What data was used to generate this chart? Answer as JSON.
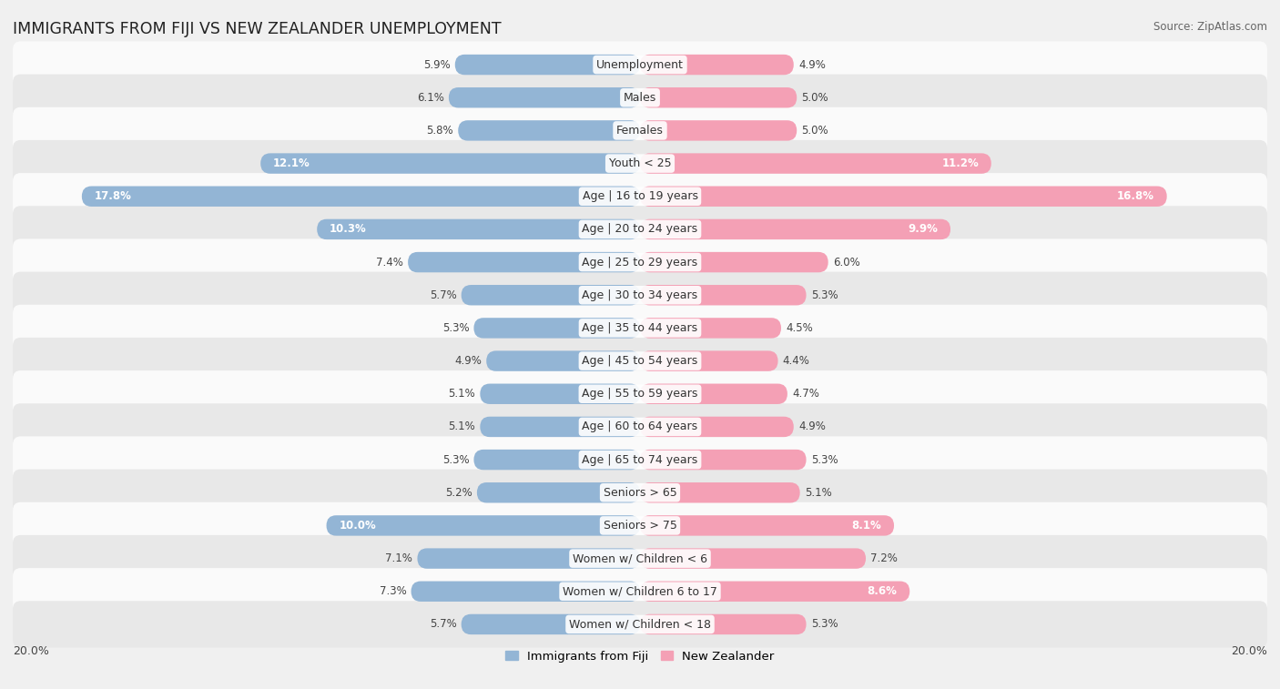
{
  "title": "IMMIGRANTS FROM FIJI VS NEW ZEALANDER UNEMPLOYMENT",
  "source": "Source: ZipAtlas.com",
  "categories": [
    "Unemployment",
    "Males",
    "Females",
    "Youth < 25",
    "Age | 16 to 19 years",
    "Age | 20 to 24 years",
    "Age | 25 to 29 years",
    "Age | 30 to 34 years",
    "Age | 35 to 44 years",
    "Age | 45 to 54 years",
    "Age | 55 to 59 years",
    "Age | 60 to 64 years",
    "Age | 65 to 74 years",
    "Seniors > 65",
    "Seniors > 75",
    "Women w/ Children < 6",
    "Women w/ Children 6 to 17",
    "Women w/ Children < 18"
  ],
  "fiji_values": [
    5.9,
    6.1,
    5.8,
    12.1,
    17.8,
    10.3,
    7.4,
    5.7,
    5.3,
    4.9,
    5.1,
    5.1,
    5.3,
    5.2,
    10.0,
    7.1,
    7.3,
    5.7
  ],
  "nz_values": [
    4.9,
    5.0,
    5.0,
    11.2,
    16.8,
    9.9,
    6.0,
    5.3,
    4.5,
    4.4,
    4.7,
    4.9,
    5.3,
    5.1,
    8.1,
    7.2,
    8.6,
    5.3
  ],
  "fiji_color": "#93b5d5",
  "nz_color": "#f4a0b5",
  "fiji_label": "Immigrants from Fiji",
  "nz_label": "New Zealander",
  "axis_max": 20.0,
  "bar_height": 0.62,
  "background_color": "#f0f0f0",
  "row_bg_light": "#fafafa",
  "row_bg_dark": "#e8e8e8",
  "label_fontsize": 9.0,
  "value_fontsize": 8.5,
  "title_fontsize": 12.5
}
